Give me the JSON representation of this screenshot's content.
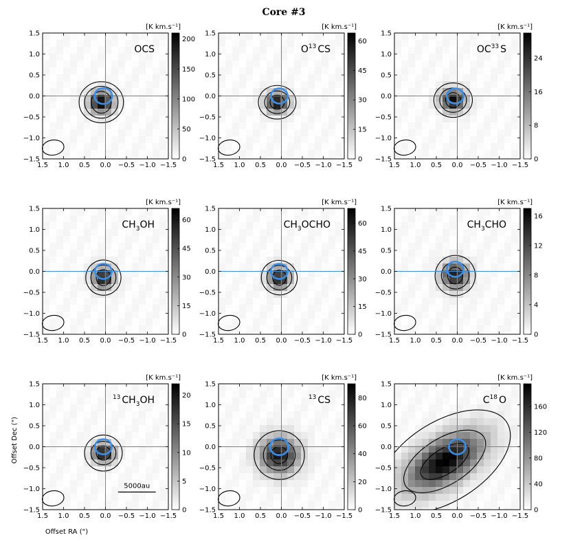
{
  "figure": {
    "title": "Core #3",
    "unit_label": "[K km.s⁻¹]",
    "xlabel": "Offset RA (\")",
    "ylabel": "Offset Dec (\")",
    "scale_bar_label": "5000au"
  },
  "colors": {
    "crosshair": "#3d8fd9",
    "blue_contour": "#3a8ee6",
    "contour": "#000000",
    "frame": "#000000"
  },
  "chart_data": [
    {
      "type": "heatmap",
      "label_main": "OCS",
      "label_sup": "",
      "label_post": "",
      "cbar_ticks": [
        "0",
        "50",
        "100",
        "150",
        "200"
      ],
      "vmax": 210,
      "peak": [
        0.1,
        -0.15
      ],
      "source_sigma": [
        0.2,
        0.18
      ],
      "source_theta": 0,
      "gmax": 1.0,
      "contours": [
        [
          0.24,
          0.26,
          0
        ],
        [
          0.4,
          0.38,
          0
        ],
        [
          0.53,
          0.49,
          0
        ]
      ],
      "blue_contour": [
        0.05,
        0.0,
        0.21,
        0.19
      ]
    },
    {
      "type": "heatmap",
      "label_main": "O",
      "label_sup": "13",
      "label_post": "CS",
      "cbar_ticks": [
        "0",
        "15",
        "30",
        "45",
        "60"
      ],
      "vmax": 64,
      "peak": [
        0.1,
        -0.15
      ],
      "source_sigma": [
        0.19,
        0.17
      ],
      "source_theta": 0,
      "gmax": 0.92,
      "contours": [
        [
          0.17,
          0.17,
          0
        ],
        [
          0.3,
          0.27,
          0
        ],
        [
          0.45,
          0.4,
          0
        ]
      ],
      "blue_contour": [
        0.05,
        0.0,
        0.2,
        0.18
      ]
    },
    {
      "type": "heatmap",
      "label_main": "OC",
      "label_sup": "33",
      "label_post": "S",
      "cbar_ticks": [
        "0",
        "8",
        "16",
        "24"
      ],
      "vmax": 30,
      "peak": [
        0.1,
        -0.1
      ],
      "source_sigma": [
        0.2,
        0.18
      ],
      "source_theta": 0,
      "gmax": 0.95,
      "contours": [
        [
          0.18,
          0.18,
          0
        ],
        [
          0.32,
          0.29,
          0
        ],
        [
          0.46,
          0.41,
          0
        ]
      ],
      "blue_contour": [
        0.05,
        0.0,
        0.2,
        0.18
      ]
    },
    {
      "type": "heatmap",
      "label_main": "CH",
      "label_sup": "",
      "label_sub": "3",
      "label_post": "OH",
      "cbar_ticks": [
        "0",
        "15",
        "30",
        "45",
        "60"
      ],
      "vmax": 66,
      "peak": [
        0.05,
        -0.15
      ],
      "source_sigma": [
        0.18,
        0.18
      ],
      "source_theta": 0,
      "gmax": 0.9,
      "contours": [
        [
          0.17,
          0.19,
          0
        ],
        [
          0.3,
          0.3,
          15
        ],
        [
          0.42,
          0.42,
          15
        ]
      ],
      "blue_contour": [
        0.05,
        0.0,
        0.2,
        0.18
      ]
    },
    {
      "type": "heatmap",
      "label_main": "CH",
      "label_sup": "",
      "label_sub": "3",
      "label_post": "OCHO",
      "cbar_ticks": [
        "0",
        "15",
        "30",
        "45",
        "60"
      ],
      "vmax": 68,
      "peak": [
        0.05,
        -0.15
      ],
      "source_sigma": [
        0.18,
        0.18
      ],
      "source_theta": 0,
      "gmax": 0.9,
      "contours": [
        [
          0.16,
          0.18,
          0
        ],
        [
          0.3,
          0.29,
          15
        ],
        [
          0.43,
          0.41,
          15
        ]
      ],
      "blue_contour": [
        0.05,
        0.0,
        0.2,
        0.18
      ]
    },
    {
      "type": "heatmap",
      "label_main": "CH",
      "label_sup": "",
      "label_sub": "3",
      "label_post": "CHO",
      "cbar_ticks": [
        "0",
        "4",
        "8",
        "12",
        "16"
      ],
      "vmax": 17,
      "peak": [
        0.05,
        -0.1
      ],
      "source_sigma": [
        0.22,
        0.22
      ],
      "source_theta": 0,
      "gmax": 0.9,
      "contours": [
        [
          0.18,
          0.2,
          0
        ],
        [
          0.33,
          0.32,
          15
        ],
        [
          0.48,
          0.48,
          15
        ]
      ],
      "blue_contour": [
        0.05,
        0.05,
        0.2,
        0.18
      ]
    },
    {
      "type": "heatmap",
      "label_main": "",
      "label_sup": "13",
      "label_mid": "CH",
      "label_sub": "3",
      "label_post": "OH",
      "cbar_ticks": [
        "0",
        "5",
        "10",
        "15",
        "20"
      ],
      "vmax": 22,
      "peak": [
        0.05,
        -0.15
      ],
      "source_sigma": [
        0.18,
        0.16
      ],
      "source_theta": 0,
      "gmax": 0.95,
      "contours": [
        [
          0.17,
          0.17,
          0
        ],
        [
          0.3,
          0.28,
          0
        ],
        [
          0.45,
          0.43,
          0
        ]
      ],
      "blue_contour": [
        0.05,
        0.0,
        0.2,
        0.18
      ]
    },
    {
      "type": "heatmap",
      "label_main": "",
      "label_sup": "13",
      "label_mid": "CS",
      "label_sub": "",
      "label_post": "",
      "cbar_ticks": [
        "0",
        "20",
        "40",
        "60",
        "80"
      ],
      "vmax": 90,
      "peak": [
        0.05,
        -0.2
      ],
      "source_sigma": [
        0.32,
        0.3
      ],
      "source_theta": 0,
      "gmax": 0.9,
      "contours": [
        [
          0.2,
          0.2,
          0
        ],
        [
          0.38,
          0.36,
          0
        ],
        [
          0.6,
          0.58,
          0
        ]
      ],
      "blue_contour": [
        0.05,
        0.0,
        0.22,
        0.2
      ]
    },
    {
      "type": "heatmap",
      "label_main": "C",
      "label_sup": "18",
      "label_post": "O",
      "cbar_ticks": [
        "0",
        "40",
        "80",
        "120",
        "160"
      ],
      "vmax": 195,
      "peak": [
        0.3,
        -0.35
      ],
      "source_sigma": [
        0.7,
        0.35
      ],
      "source_theta": -32,
      "gmax": 1.0,
      "contours": [
        [
          0.65,
          0.3,
          -32
        ],
        [
          1.1,
          0.55,
          -32
        ],
        [
          1.75,
          0.95,
          -32
        ]
      ],
      "blue_contour": [
        0.0,
        0.0,
        0.2,
        0.18
      ]
    }
  ]
}
